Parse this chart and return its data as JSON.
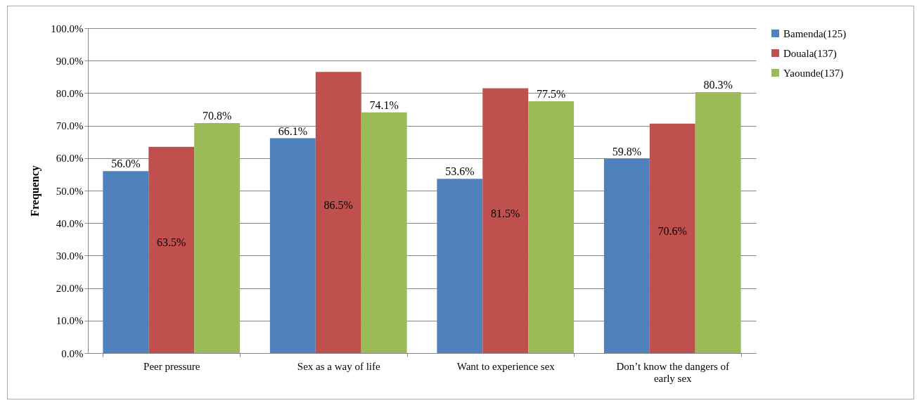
{
  "chart_data": {
    "type": "bar",
    "ylabel": "Frequency",
    "categories": [
      "Peer pressure",
      "Sex as a way of life",
      "Want to experience sex",
      "Don’t know the dangers of early sex"
    ],
    "series": [
      {
        "name": "Bamenda(125)",
        "color": "#4f81bd",
        "values": [
          56.0,
          66.1,
          53.6,
          59.8
        ],
        "value_labels": [
          "56.0%",
          "66.1%",
          "53.6%",
          "59.8%"
        ]
      },
      {
        "name": "Douala(137)",
        "color": "#c0504d",
        "values": [
          63.5,
          86.5,
          81.5,
          70.6
        ],
        "value_labels": [
          "63.5%",
          "86.5%",
          "81.5%",
          "70.6%"
        ]
      },
      {
        "name": "Yaounde(137)",
        "color": "#9bbb59",
        "values": [
          70.8,
          74.1,
          77.5,
          80.3
        ],
        "value_labels": [
          "70.8%",
          "74.1%",
          "77.5%",
          "80.3%"
        ]
      }
    ],
    "ylim": [
      0,
      100
    ],
    "yticks": [
      {
        "value": 0,
        "label": "0.0%"
      },
      {
        "value": 10,
        "label": "10.0%"
      },
      {
        "value": 20,
        "label": "20.0%"
      },
      {
        "value": 30,
        "label": "30.0%"
      },
      {
        "value": 40,
        "label": "40.0%"
      },
      {
        "value": 50,
        "label": "50.0%"
      },
      {
        "value": 60,
        "label": "60.0%"
      },
      {
        "value": 70,
        "label": "70.0%"
      },
      {
        "value": 80,
        "label": "80.0%"
      },
      {
        "value": 90,
        "label": "90.0%"
      },
      {
        "value": 100,
        "label": "100.0%"
      }
    ],
    "grid": "y",
    "legend": "right"
  }
}
